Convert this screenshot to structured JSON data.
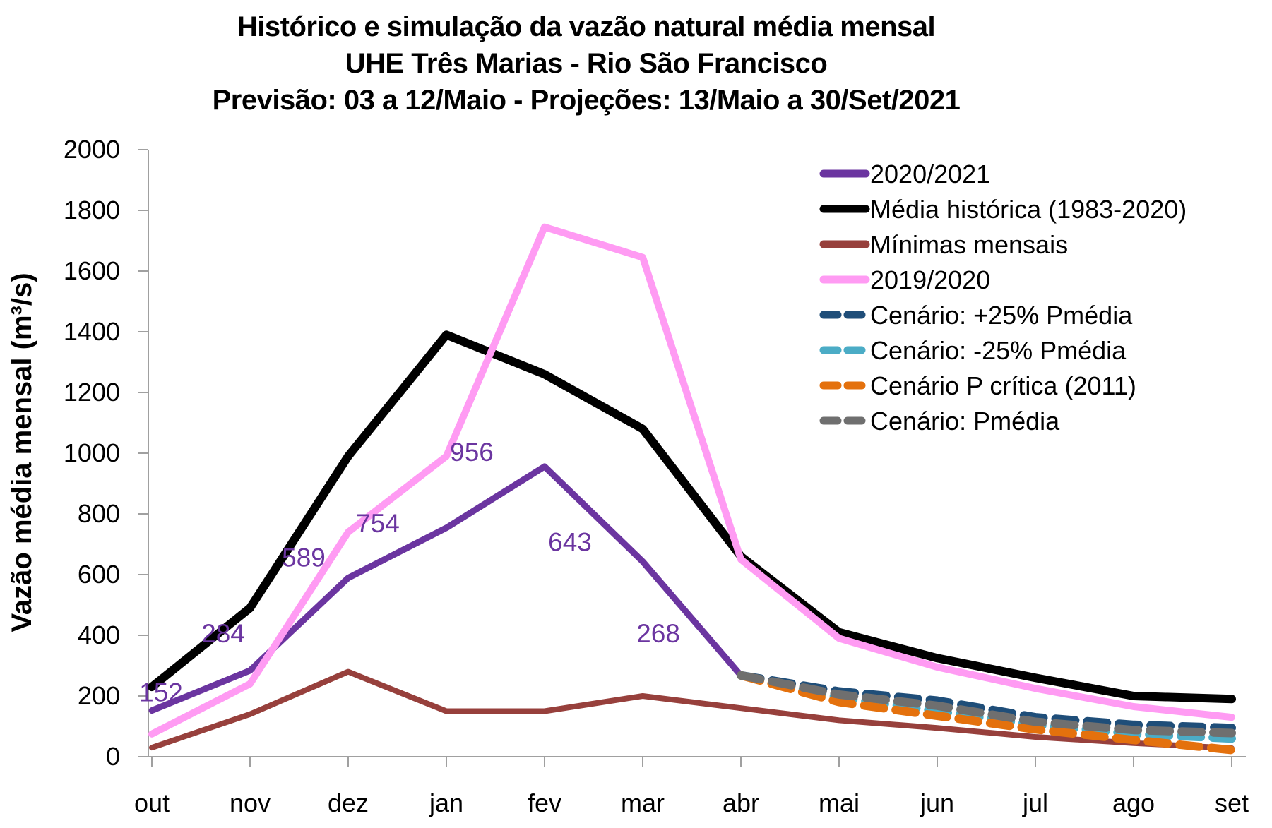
{
  "title": {
    "line1": "Histórico e simulação da vazão natural média mensal",
    "line2": "UHE Três Marias - Rio São Francisco",
    "line3": "Previsão: 03 a 12/Maio - Projeções: 13/Maio a 30/Set/2021"
  },
  "y_axis": {
    "title": "Vazão média mensal (m³/s)",
    "min": 0,
    "max": 2000,
    "tick_step": 200,
    "tick_labels": [
      "0",
      "200",
      "400",
      "600",
      "800",
      "1000",
      "1200",
      "1400",
      "1600",
      "1800",
      "2000"
    ]
  },
  "x_axis": {
    "categories": [
      "out",
      "nov",
      "dez",
      "jan",
      "fev",
      "mar",
      "abr",
      "mai",
      "jun",
      "jul",
      "ago",
      "set"
    ]
  },
  "chart_data": {
    "type": "line",
    "title_lines": [
      "Histórico e simulação da vazão natural média mensal",
      "UHE Três Marias - Rio São Francisco",
      "Previsão: 03 a 12/Maio - Projeções: 13/Maio a 30/Set/2021"
    ],
    "xlabel": "",
    "ylabel": "Vazão média mensal (m³/s)",
    "ylim": [
      0,
      2000
    ],
    "grid": false,
    "legend_position": "top-right-inside",
    "categories": [
      "out",
      "nov",
      "dez",
      "jan",
      "fev",
      "mar",
      "abr",
      "mai",
      "jun",
      "jul",
      "ago",
      "set"
    ],
    "series": [
      {
        "name": "2020/2021",
        "color": "#6B35A0",
        "style": "solid",
        "width": 9,
        "values": [
          152,
          284,
          589,
          754,
          956,
          643,
          268,
          null,
          null,
          null,
          null,
          null
        ]
      },
      {
        "name": "Média histórica (1983-2020)",
        "color": "#000000",
        "style": "solid",
        "width": 12,
        "values": [
          230,
          490,
          990,
          1390,
          1260,
          1080,
          660,
          410,
          325,
          260,
          200,
          190
        ]
      },
      {
        "name": "Mínimas mensais",
        "color": "#97403C",
        "style": "solid",
        "width": 8,
        "values": [
          30,
          140,
          280,
          150,
          150,
          200,
          160,
          120,
          95,
          65,
          45,
          28
        ]
      },
      {
        "name": "2019/2020",
        "color": "#FF9BF3",
        "style": "solid",
        "width": 10,
        "values": [
          75,
          240,
          740,
          990,
          1745,
          1645,
          650,
          390,
          295,
          225,
          165,
          130
        ]
      },
      {
        "name": "Cenário: +25% Pmédia",
        "color": "#1F4E79",
        "style": "dashed",
        "width": 12,
        "values": [
          null,
          null,
          null,
          null,
          null,
          null,
          268,
          215,
          185,
          130,
          105,
          95
        ]
      },
      {
        "name": "Cenário: -25% Pmédia",
        "color": "#4BACC6",
        "style": "dashed",
        "width": 12,
        "values": [
          null,
          null,
          null,
          null,
          null,
          null,
          268,
          195,
          150,
          105,
          75,
          60
        ]
      },
      {
        "name": "Cenário P crítica (2011)",
        "color": "#E4710D",
        "style": "dashed",
        "width": 12,
        "values": [
          null,
          null,
          null,
          null,
          null,
          null,
          268,
          180,
          135,
          90,
          55,
          22
        ]
      },
      {
        "name": "Cenário: Pmédia",
        "color": "#6F6F6F",
        "style": "dashed",
        "width": 12,
        "values": [
          null,
          null,
          null,
          null,
          null,
          null,
          268,
          205,
          168,
          115,
          88,
          78
        ]
      }
    ],
    "data_labels": {
      "series": "2020/2021",
      "color": "#6B35A0",
      "values": [
        "152",
        "284",
        "589",
        "754",
        "956",
        "643",
        "268"
      ]
    }
  },
  "legend": {
    "items": [
      {
        "label": "2020/2021",
        "color": "#6B35A0",
        "style": "solid"
      },
      {
        "label": "Média histórica (1983-2020)",
        "color": "#000000",
        "style": "solid"
      },
      {
        "label": "Mínimas mensais",
        "color": "#97403C",
        "style": "solid"
      },
      {
        "label": "2019/2020",
        "color": "#FF9BF3",
        "style": "solid"
      },
      {
        "label": "Cenário: +25% Pmédia",
        "color": "#1F4E79",
        "style": "dashed"
      },
      {
        "label": "Cenário: -25% Pmédia",
        "color": "#4BACC6",
        "style": "dashed"
      },
      {
        "label": "Cenário P crítica (2011)",
        "color": "#E4710D",
        "style": "dashed"
      },
      {
        "label": "Cenário: Pmédia",
        "color": "#6F6F6F",
        "style": "dashed"
      }
    ]
  }
}
